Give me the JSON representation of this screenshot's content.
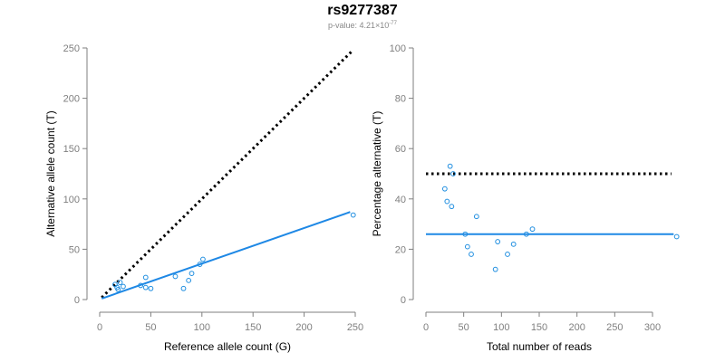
{
  "title": "rs9277387",
  "subtitle": {
    "prefix": "p-value: 4.21×10",
    "exponent": "-77"
  },
  "colors": {
    "point": "#1f8ee0",
    "fit_line": "#1e88e5",
    "reference_line": "#000000",
    "axis": "#7f7f7f"
  },
  "chart_data": [
    {
      "type": "scatter",
      "xlabel": "Reference allele count (G)",
      "ylabel": "Alternative allele count (T)",
      "xlim": [
        0,
        250
      ],
      "ylim": [
        0,
        250
      ],
      "x_ticks": [
        0,
        50,
        100,
        150,
        200,
        250
      ],
      "y_ticks": [
        0,
        50,
        100,
        150,
        200,
        250
      ],
      "grid": false,
      "points": [
        {
          "x": 15,
          "y": 15
        },
        {
          "x": 17,
          "y": 12
        },
        {
          "x": 18,
          "y": 10
        },
        {
          "x": 20,
          "y": 17
        },
        {
          "x": 23,
          "y": 13
        },
        {
          "x": 40,
          "y": 14
        },
        {
          "x": 45,
          "y": 22
        },
        {
          "x": 45,
          "y": 12
        },
        {
          "x": 50,
          "y": 11
        },
        {
          "x": 74,
          "y": 23
        },
        {
          "x": 82,
          "y": 11
        },
        {
          "x": 87,
          "y": 19
        },
        {
          "x": 90,
          "y": 26
        },
        {
          "x": 98,
          "y": 35
        },
        {
          "x": 101,
          "y": 40
        },
        {
          "x": 248,
          "y": 84
        }
      ],
      "fit_line": {
        "x": [
          2,
          245
        ],
        "y": [
          1,
          87
        ]
      },
      "reference_line": {
        "x": [
          2,
          246
        ],
        "y": [
          2,
          246
        ]
      }
    },
    {
      "type": "scatter",
      "xlabel": "Total number of reads",
      "ylabel": "Percentage alternative (T)",
      "xlim": [
        0,
        330
      ],
      "ylim": [
        0,
        100
      ],
      "x_ticks": [
        0,
        50,
        100,
        150,
        200,
        250,
        300
      ],
      "y_ticks": [
        0,
        20,
        40,
        60,
        80,
        100
      ],
      "grid": false,
      "points": [
        {
          "x": 25,
          "y": 44
        },
        {
          "x": 28,
          "y": 39
        },
        {
          "x": 32,
          "y": 53
        },
        {
          "x": 34,
          "y": 37
        },
        {
          "x": 36,
          "y": 50
        },
        {
          "x": 52,
          "y": 26
        },
        {
          "x": 55,
          "y": 21
        },
        {
          "x": 60,
          "y": 18
        },
        {
          "x": 67,
          "y": 33
        },
        {
          "x": 92,
          "y": 12
        },
        {
          "x": 95,
          "y": 23
        },
        {
          "x": 108,
          "y": 18
        },
        {
          "x": 116,
          "y": 22
        },
        {
          "x": 133,
          "y": 26
        },
        {
          "x": 141,
          "y": 28
        },
        {
          "x": 332,
          "y": 25
        }
      ],
      "fit_line": {
        "x": [
          0,
          328
        ],
        "y": [
          26,
          26
        ]
      },
      "reference_line": {
        "x": [
          0,
          325
        ],
        "y": [
          50,
          50
        ]
      }
    }
  ]
}
